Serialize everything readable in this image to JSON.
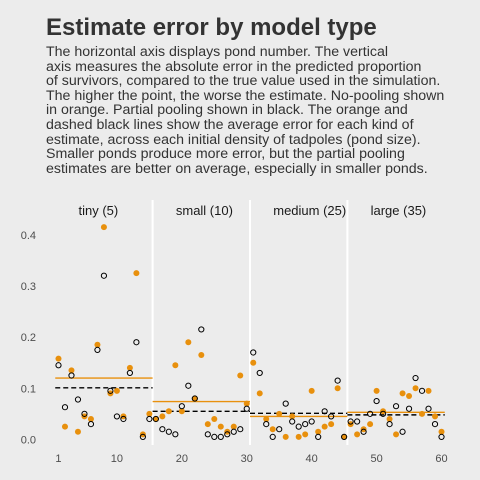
{
  "chart_data": {
    "type": "scatter",
    "title": "Estimate error by model type",
    "subtitle": "The horizontal axis displays pond number. The vertical\naxis measures the absolute error in the predicted proportion\nof survivors, compared to the true value used in the simulation.\nThe higher the point, the worse the estimate. No-pooling shown\nin orange. Partial pooling shown in black. The orange and\ndashed black lines show the average error for each kind of\nestimate, across each initial density of tadpoles (pond size).\nSmaller ponds produce more error, but the partial pooling\nestimates are better on average, especially in smaller ponds.",
    "xlabel": "",
    "ylabel": "",
    "xlim": [
      0,
      61
    ],
    "ylim": [
      -0.005,
      0.425
    ],
    "x_ticks": [
      1,
      10,
      20,
      30,
      40,
      50,
      60
    ],
    "x_tick_labels": [
      "1",
      "10",
      "20",
      "30",
      "40",
      "50",
      "60"
    ],
    "y_ticks": [
      0.0,
      0.1,
      0.2,
      0.3,
      0.4
    ],
    "y_tick_labels": [
      "0.0",
      "0.1",
      "0.2",
      "0.3",
      "0.4"
    ],
    "grid": false,
    "colors": {
      "no_pooling": "#e8900d",
      "partial_pooling": "#000000",
      "divider": "#ffffff"
    },
    "panels": [
      {
        "label": "tiny (5)",
        "x_range": [
          1,
          15
        ]
      },
      {
        "label": "small (10)",
        "x_range": [
          16,
          30
        ]
      },
      {
        "label": "medium (25)",
        "x_range": [
          31,
          45
        ]
      },
      {
        "label": "large (35)",
        "x_range": [
          46,
          60
        ]
      }
    ],
    "dividers": [
      15.5,
      30.5,
      45.5
    ],
    "series": [
      {
        "name": "No-pooling",
        "style": "filled-orange",
        "x": [
          1,
          2,
          3,
          4,
          5,
          6,
          7,
          8,
          9,
          10,
          11,
          12,
          13,
          14,
          15,
          16,
          17,
          18,
          19,
          20,
          21,
          22,
          23,
          24,
          25,
          26,
          27,
          28,
          29,
          30,
          31,
          32,
          33,
          34,
          35,
          36,
          37,
          38,
          39,
          40,
          41,
          42,
          43,
          44,
          45,
          46,
          47,
          48,
          49,
          50,
          51,
          52,
          53,
          54,
          55,
          56,
          57,
          58,
          59,
          60
        ],
        "y": [
          0.158,
          0.025,
          0.135,
          0.015,
          0.045,
          0.04,
          0.185,
          0.415,
          0.09,
          0.095,
          0.045,
          0.14,
          0.325,
          0.01,
          0.05,
          0.04,
          0.045,
          0.055,
          0.145,
          0.055,
          0.19,
          0.08,
          0.165,
          0.03,
          0.04,
          0.025,
          0.015,
          0.025,
          0.125,
          0.07,
          0.15,
          0.09,
          0.04,
          0.02,
          0.05,
          0.005,
          0.045,
          0.005,
          0.01,
          0.095,
          0.015,
          0.025,
          0.03,
          0.1,
          0.005,
          0.03,
          0.01,
          0.02,
          0.03,
          0.095,
          0.055,
          0.04,
          0.01,
          0.09,
          0.085,
          0.1,
          0.05,
          0.095,
          0.045,
          0.015
        ],
        "mean_lines": [
          {
            "x_range": [
              1,
              15
            ],
            "y": 0.12
          },
          {
            "x_range": [
              16,
              30
            ],
            "y": 0.074
          },
          {
            "x_range": [
              31,
              45
            ],
            "y": 0.045
          },
          {
            "x_range": [
              46,
              60
            ],
            "y": 0.053
          }
        ]
      },
      {
        "name": "Partial pooling",
        "style": "open-black",
        "x": [
          1,
          2,
          3,
          4,
          5,
          6,
          7,
          8,
          9,
          10,
          11,
          12,
          13,
          14,
          15,
          16,
          17,
          18,
          19,
          20,
          21,
          22,
          23,
          24,
          25,
          26,
          27,
          28,
          29,
          30,
          31,
          32,
          33,
          34,
          35,
          36,
          37,
          38,
          39,
          40,
          41,
          42,
          43,
          44,
          45,
          46,
          47,
          48,
          49,
          50,
          51,
          52,
          53,
          54,
          55,
          56,
          57,
          58,
          59,
          60
        ],
        "y": [
          0.145,
          0.063,
          0.125,
          0.078,
          0.05,
          0.03,
          0.175,
          0.32,
          0.095,
          0.045,
          0.04,
          0.13,
          0.19,
          0.005,
          0.04,
          0.04,
          0.02,
          0.015,
          0.01,
          0.065,
          0.105,
          0.08,
          0.215,
          0.01,
          0.005,
          0.005,
          0.01,
          0.015,
          0.02,
          0.06,
          0.17,
          0.13,
          0.03,
          0.005,
          0.02,
          0.07,
          0.035,
          0.025,
          0.03,
          0.035,
          0.005,
          0.055,
          0.045,
          0.115,
          0.005,
          0.035,
          0.035,
          0.015,
          0.05,
          0.075,
          0.05,
          0.03,
          0.065,
          0.015,
          0.06,
          0.12,
          0.095,
          0.06,
          0.03,
          0.005
        ],
        "mean_lines": [
          {
            "x_range": [
              1,
              15
            ],
            "y": 0.101
          },
          {
            "x_range": [
              16,
              30
            ],
            "y": 0.055
          },
          {
            "x_range": [
              31,
              45
            ],
            "y": 0.051
          },
          {
            "x_range": [
              46,
              60
            ],
            "y": 0.048
          }
        ]
      }
    ]
  }
}
